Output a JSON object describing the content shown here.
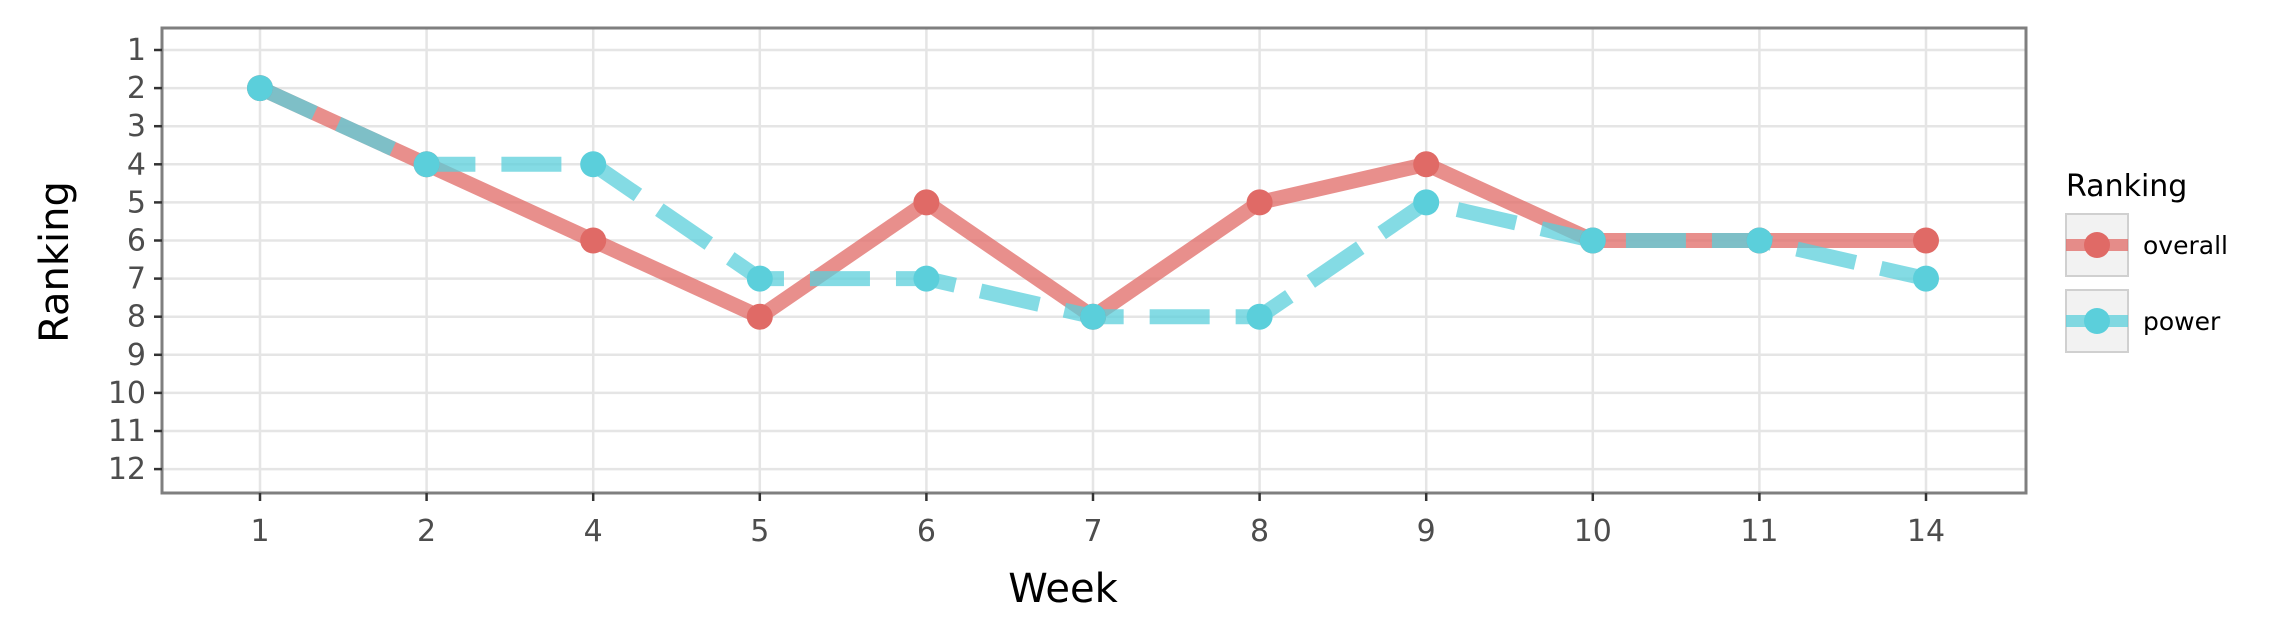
{
  "chart_data": {
    "type": "line",
    "title": "",
    "xlabel": "Week",
    "ylabel": "Ranking",
    "categories": [
      "1",
      "2",
      "4",
      "5",
      "6",
      "7",
      "8",
      "9",
      "10",
      "11",
      "14"
    ],
    "y_ticks": [
      "1",
      "2",
      "3",
      "4",
      "5",
      "6",
      "7",
      "8",
      "9",
      "10",
      "11",
      "12"
    ],
    "ylim": [
      1,
      12
    ],
    "y_reversed": true,
    "grid": true,
    "legend": {
      "title": "Ranking",
      "position": "right"
    },
    "series": [
      {
        "name": "overall",
        "values": [
          2,
          4,
          6,
          8,
          5,
          8,
          5,
          4,
          6,
          6,
          6
        ],
        "color": "#E06A66",
        "line_style": "solid"
      },
      {
        "name": "power",
        "values": [
          2,
          4,
          4,
          7,
          7,
          8,
          8,
          5,
          6,
          6,
          7
        ],
        "color": "#5BCFDB",
        "line_style": "dashed"
      }
    ]
  }
}
